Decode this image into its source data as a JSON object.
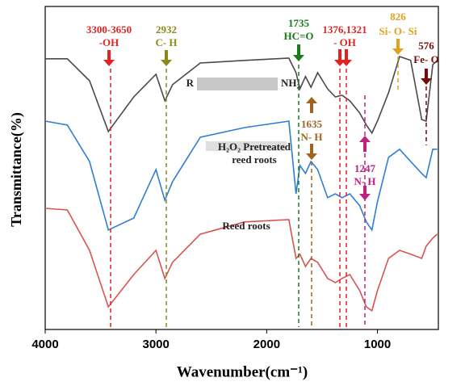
{
  "chart_data": {
    "type": "line",
    "xlabel": "Wavenumber(cm⁻¹)",
    "ylabel": "Transmittance(%)",
    "xlim": [
      4000,
      450
    ],
    "xticks": [
      4000,
      3000,
      2000,
      1000
    ],
    "ylim": [
      0,
      100
    ],
    "x": [
      4000,
      3800,
      3600,
      3430,
      3200,
      3000,
      2920,
      2850,
      2600,
      2200,
      1800,
      1735,
      1700,
      1650,
      1600,
      1540,
      1450,
      1380,
      1320,
      1250,
      1160,
      1100,
      1050,
      1000,
      900,
      800,
      700,
      600,
      560,
      500,
      460
    ],
    "series": [
      {
        "name": [
          "R",
          "NH₂"
        ],
        "color": "#4a4a4a",
        "values": [
          83.8,
          83.8,
          77,
          61.3,
          72,
          79,
          70.8,
          75.8,
          82.5,
          83.3,
          84,
          79.5,
          74.5,
          78.3,
          75,
          79.5,
          74.5,
          72,
          72.5,
          70.8,
          67,
          63.3,
          60.8,
          64.5,
          73.3,
          84.5,
          83.3,
          65,
          64.5,
          82,
          83.3
        ]
      },
      {
        "name": [
          "H₂O₂ Pretreated",
          "reed roots"
        ],
        "color": "#2e7ed2",
        "values": [
          64.5,
          63.3,
          52,
          30.8,
          34.5,
          49.5,
          40,
          45.8,
          59.5,
          62.5,
          64.5,
          42,
          50.8,
          48.3,
          52,
          49.5,
          40.8,
          42,
          40.8,
          42,
          38.3,
          33.3,
          30.8,
          39.5,
          53.3,
          55.8,
          52,
          48.3,
          47,
          55.8,
          55.8
        ]
      },
      {
        "name": [
          "Reed roots"
        ],
        "color": "#d9534f",
        "values": [
          37.5,
          37,
          24.5,
          7,
          17,
          24.5,
          15.8,
          20.8,
          29.5,
          33.3,
          34,
          22,
          23.3,
          19.5,
          22,
          20.8,
          15.8,
          14.5,
          15.8,
          17,
          12,
          7,
          5.8,
          12,
          22,
          24.5,
          23.3,
          22,
          25.8,
          28.3,
          29.5
        ]
      }
    ],
    "annotations": [
      {
        "lines": [
          "3300-3650",
          "-OH"
        ],
        "color": "#e02424"
      },
      {
        "lines": [
          "2932",
          "C- H"
        ],
        "color": "#8a8a1a"
      },
      {
        "lines": [
          "1735",
          "HC=O"
        ],
        "color": "#1a7a1a"
      },
      {
        "lines": [
          "1376,1321",
          "- OH"
        ],
        "color": "#e02424"
      },
      {
        "lines": [
          "826",
          "Si- O- Si"
        ],
        "color": "#e0a020"
      },
      {
        "lines": [
          "576",
          "Fe- O"
        ],
        "color": "#7a0a0a"
      },
      {
        "lines": [
          "1635",
          "N- H"
        ],
        "color": "#a0641e"
      },
      {
        "lines": [
          "1247",
          "N- H"
        ],
        "color": "#c02080"
      }
    ]
  }
}
